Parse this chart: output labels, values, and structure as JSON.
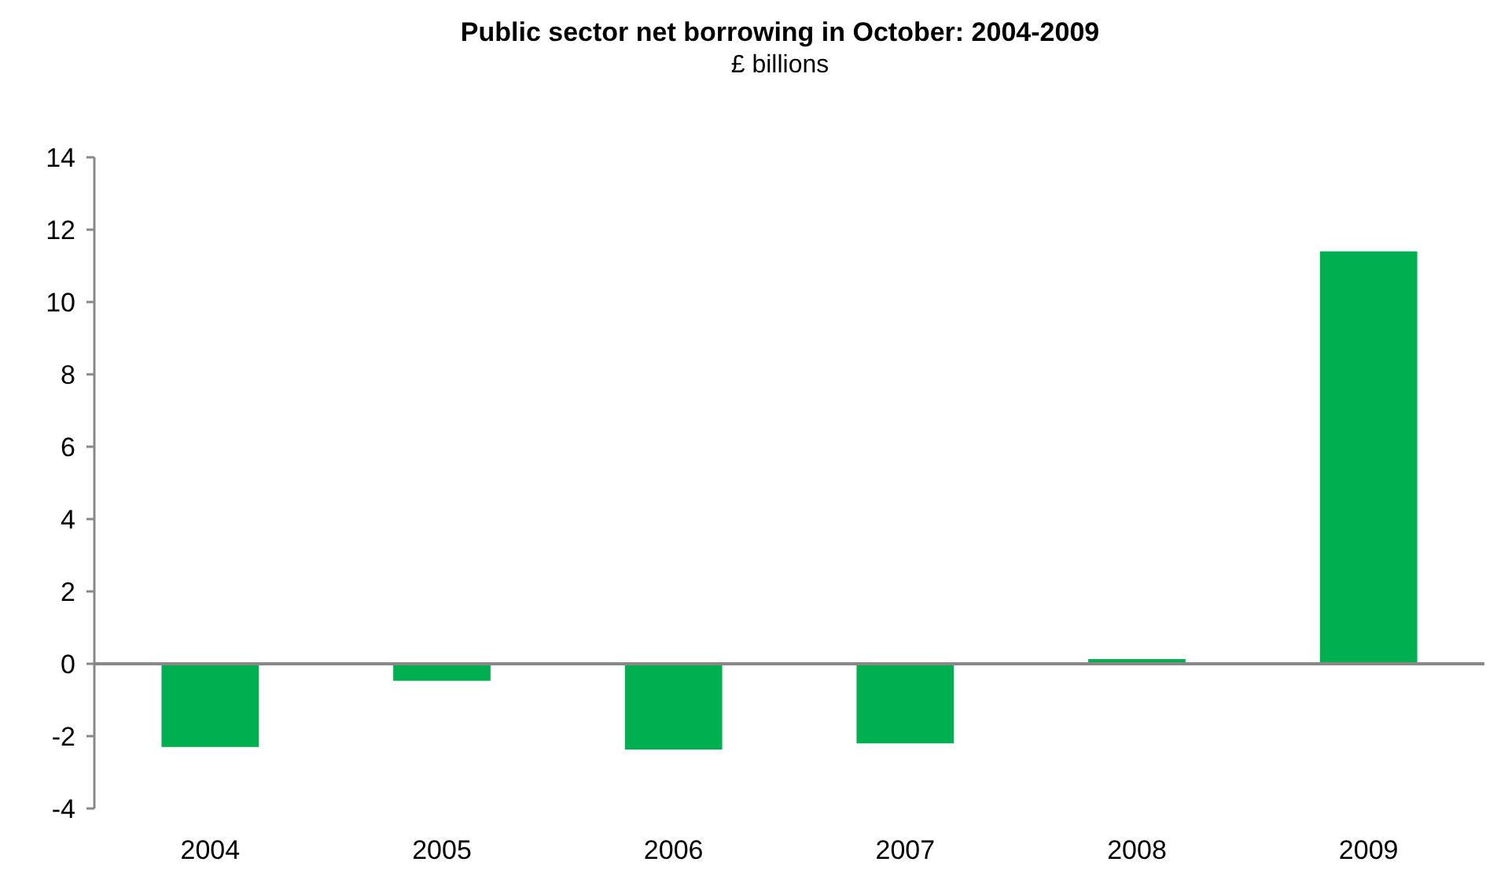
{
  "chart_data": {
    "type": "bar",
    "title": "Public sector net borrowing in October: 2004-2009",
    "subtitle": "£ billions",
    "categories": [
      "2004",
      "2005",
      "2006",
      "2007",
      "2008",
      "2009"
    ],
    "values": [
      -2.3,
      -0.47,
      -2.37,
      -2.2,
      0.13,
      11.4
    ],
    "color": "#00b050",
    "ylim": [
      -4,
      14
    ],
    "yticks": [
      -4,
      -2,
      0,
      2,
      4,
      6,
      8,
      10,
      12,
      14
    ]
  }
}
